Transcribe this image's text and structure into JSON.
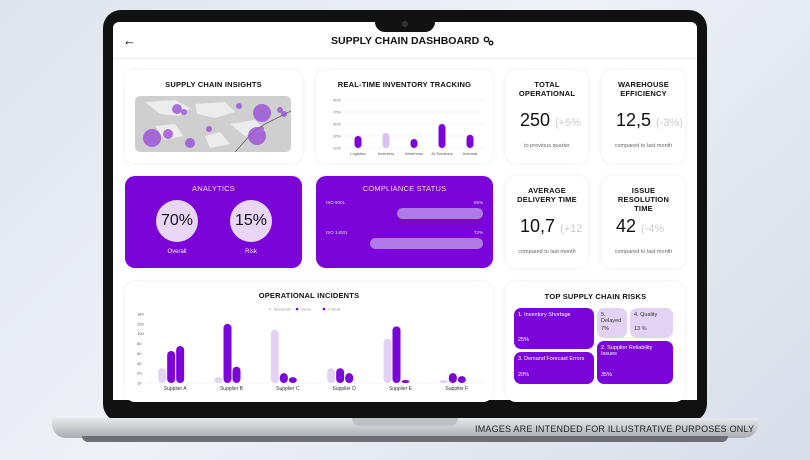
{
  "header": {
    "title": "SUPPLY CHAIN DASHBOARD",
    "back_icon": "arrow-left-icon",
    "settings_icon": "gears-icon"
  },
  "disclaimer": "IMAGES ARE INTENDED FOR ILLUSTRATIVE PURPOSES ONLY",
  "insights": {
    "title": "SUPPLY CHAIN INSIGHTS"
  },
  "inventory": {
    "title": "REAL-TIME INVENTORY TRACKING"
  },
  "kpis": [
    {
      "title": "TOTAL OPERATIONAL",
      "value": "250",
      "delta": "(+5%",
      "sub": "to previous quarter"
    },
    {
      "title": "WAREHOUSE EFFICIENCY",
      "value": "12,5",
      "delta": "(-3%)",
      "sub": "compared to last month"
    },
    {
      "title": "AVERAGE DELIVERY TIME",
      "value": "10,7",
      "delta": "(+12",
      "sub": "compared to last month"
    },
    {
      "title": "ISSUE RESOLUTION TIME",
      "value": "42",
      "delta": "(-4%",
      "sub": "compared to last month"
    }
  ],
  "analytics": {
    "title": "ANALYTICS",
    "overall": "70%",
    "overall_label": "Overall",
    "risk": "15%",
    "risk_label": "Risk"
  },
  "compliance": {
    "title": "COMPLIANCE STATUS",
    "items": [
      {
        "name": "ISO 9001",
        "pct": "55%",
        "value": 55
      },
      {
        "name": "ISO 14001",
        "pct": "72%",
        "value": 72
      }
    ]
  },
  "incidents": {
    "title": "OPERATIONAL INCIDENTS"
  },
  "risks": {
    "title": "TOP SUPPLY CHAIN RISKS",
    "items": [
      {
        "label": "1. Inventory Shortage",
        "pct": "25%"
      },
      {
        "label": "5. Delayed",
        "pct": "7%"
      },
      {
        "label": "4. Quality",
        "pct": "13 %"
      },
      {
        "label": "3. Demand Forecast Errors",
        "pct": "20%"
      },
      {
        "label": "2. Supplier Reliability Issues",
        "pct": "35%"
      }
    ]
  },
  "colors": {
    "accent": "#7b05d8",
    "light": "#e3d2f3"
  },
  "chart_data": [
    {
      "type": "bar",
      "title": "REAL-TIME INVENTORY TRACKING",
      "categories": [
        "Logistics",
        "Inventory",
        "Warehous",
        "AI Solutions",
        "Automat"
      ],
      "values": [
        30,
        35,
        25,
        50,
        32
      ],
      "ylim": [
        10,
        90
      ],
      "yticks": [
        "10%",
        "30%",
        "50%",
        "70%",
        "90%"
      ]
    },
    {
      "type": "bar",
      "title": "OPERATIONAL INCIDENTS",
      "categories": [
        "Supplier A",
        "Supplier B",
        "Supplier C",
        "Supplier D",
        "Supplier E",
        "Supplier F"
      ],
      "series": [
        {
          "name": "Moderate",
          "values": [
            30,
            12,
            108,
            30,
            90,
            6
          ]
        },
        {
          "name": "Sever",
          "values": [
            65,
            120,
            20,
            30,
            115,
            20
          ]
        },
        {
          "name": "Critical",
          "values": [
            75,
            33,
            12,
            20,
            6,
            14
          ]
        }
      ],
      "ylim": [
        0,
        140
      ],
      "yticks": [
        "10",
        "20",
        "40",
        "60",
        "80",
        "100",
        "120",
        "140"
      ]
    }
  ]
}
